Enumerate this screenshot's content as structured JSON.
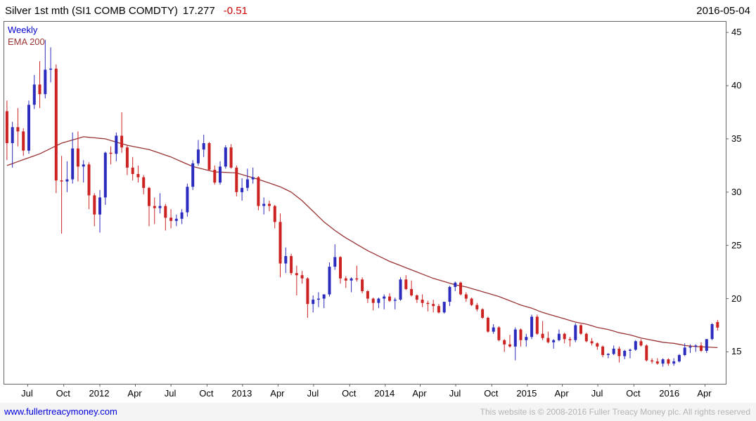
{
  "header": {
    "title": "Silver 1st mth (SI1 COMB COMDTY)",
    "price": "17.277",
    "change": "-0.51",
    "date": "2016-05-04"
  },
  "legend": {
    "timeframe": "Weekly",
    "overlay": "EMA 200"
  },
  "footer": {
    "link": "www.fullertreacymoney.com",
    "copyright": "This website is © 2008-2016 Fuller Treacy Money plc. All rights reserved"
  },
  "chart_data": {
    "type": "candlestick",
    "title": "Silver 1st mth (SI1 COMB COMDTY)",
    "timeframe": "Weekly",
    "overlay": "EMA 200",
    "last_price": 17.277,
    "change": -0.51,
    "date": "2016-05-04",
    "period_covered": "mid-2011 to May 2016, bi-weekly OHLC approximation",
    "ylim": [
      12,
      46
    ],
    "yticks": [
      15,
      20,
      25,
      30,
      35,
      40,
      45
    ],
    "grid": false,
    "legend_position": "top-left",
    "colors": {
      "up": "#2b2bbd",
      "down": "#cc2222",
      "ema": "#993333",
      "axis": "#666666"
    },
    "xticks": [
      {
        "label": "Jul",
        "i": 3.8
      },
      {
        "label": "Oct",
        "i": 10.4
      },
      {
        "label": "2012",
        "i": 17.0
      },
      {
        "label": "Apr",
        "i": 23.5
      },
      {
        "label": "Jul",
        "i": 30.0
      },
      {
        "label": "Oct",
        "i": 36.6
      },
      {
        "label": "2013",
        "i": 43.1
      },
      {
        "label": "Apr",
        "i": 49.6
      },
      {
        "label": "Jul",
        "i": 56.1
      },
      {
        "label": "Oct",
        "i": 62.7
      },
      {
        "label": "2014",
        "i": 69.2
      },
      {
        "label": "Apr",
        "i": 75.6
      },
      {
        "label": "Jul",
        "i": 82.1
      },
      {
        "label": "Oct",
        "i": 88.7
      },
      {
        "label": "2015",
        "i": 95.2
      },
      {
        "label": "Apr",
        "i": 101.6
      },
      {
        "label": "Jul",
        "i": 108.1
      },
      {
        "label": "Oct",
        "i": 114.7
      },
      {
        "label": "2016",
        "i": 121.3
      },
      {
        "label": "Apr",
        "i": 127.7
      }
    ],
    "candles": [
      [
        37.6,
        38.6,
        33.0,
        34.6
      ],
      [
        34.6,
        36.6,
        32.3,
        36.1
      ],
      [
        36.1,
        37.9,
        34.3,
        35.7
      ],
      [
        35.7,
        36.0,
        33.4,
        33.9
      ],
      [
        33.9,
        38.6,
        33.6,
        38.2
      ],
      [
        38.2,
        41.0,
        37.8,
        40.1
      ],
      [
        40.1,
        42.3,
        37.9,
        39.2
      ],
      [
        39.2,
        44.3,
        38.8,
        41.5
      ],
      [
        41.5,
        43.6,
        40.3,
        41.6
      ],
      [
        41.6,
        42.0,
        29.9,
        31.1
      ],
      [
        31.1,
        33.4,
        26.1,
        31.0
      ],
      [
        31.0,
        32.9,
        30.0,
        31.2
      ],
      [
        31.2,
        35.6,
        30.8,
        34.1
      ],
      [
        34.1,
        35.7,
        31.0,
        32.4
      ],
      [
        32.4,
        33.0,
        30.9,
        32.6
      ],
      [
        32.6,
        32.8,
        28.4,
        29.7
      ],
      [
        29.7,
        29.9,
        26.8,
        27.9
      ],
      [
        27.9,
        30.2,
        26.2,
        29.5
      ],
      [
        29.5,
        33.8,
        28.8,
        33.7
      ],
      [
        33.7,
        34.3,
        32.6,
        33.6
      ],
      [
        33.6,
        35.6,
        32.9,
        35.3
      ],
      [
        35.3,
        37.5,
        33.7,
        34.2
      ],
      [
        34.2,
        34.4,
        31.6,
        32.3
      ],
      [
        32.3,
        33.3,
        31.1,
        31.7
      ],
      [
        31.7,
        32.5,
        30.9,
        31.4
      ],
      [
        31.4,
        31.6,
        29.8,
        30.4
      ],
      [
        30.4,
        30.5,
        26.8,
        28.7
      ],
      [
        28.7,
        29.5,
        27.0,
        28.5
      ],
      [
        28.5,
        29.9,
        28.0,
        28.7
      ],
      [
        28.7,
        28.9,
        26.4,
        27.6
      ],
      [
        27.6,
        28.4,
        26.6,
        27.3
      ],
      [
        27.3,
        27.9,
        26.8,
        27.5
      ],
      [
        27.5,
        28.4,
        27.0,
        28.1
      ],
      [
        28.1,
        30.8,
        27.7,
        30.5
      ],
      [
        30.5,
        33.0,
        30.2,
        32.7
      ],
      [
        32.7,
        34.9,
        32.5,
        34.0
      ],
      [
        34.0,
        35.4,
        33.3,
        34.6
      ],
      [
        34.6,
        34.7,
        32.0,
        32.1
      ],
      [
        32.1,
        32.5,
        30.7,
        30.9
      ],
      [
        30.9,
        32.9,
        30.7,
        32.4
      ],
      [
        32.4,
        34.4,
        32.2,
        34.2
      ],
      [
        34.2,
        34.5,
        32.2,
        32.3
      ],
      [
        32.3,
        32.5,
        29.6,
        30.0
      ],
      [
        30.0,
        31.3,
        29.2,
        30.4
      ],
      [
        30.4,
        32.2,
        30.1,
        31.2
      ],
      [
        31.2,
        32.3,
        30.8,
        31.4
      ],
      [
        31.4,
        31.5,
        28.3,
        28.7
      ],
      [
        28.7,
        29.5,
        27.9,
        28.9
      ],
      [
        28.9,
        29.2,
        28.2,
        28.7
      ],
      [
        28.7,
        28.8,
        26.6,
        27.2
      ],
      [
        27.2,
        28.0,
        22.0,
        23.3
      ],
      [
        23.3,
        24.8,
        22.4,
        24.0
      ],
      [
        24.0,
        24.2,
        22.2,
        22.4
      ],
      [
        22.4,
        23.1,
        20.3,
        22.2
      ],
      [
        22.2,
        22.6,
        21.4,
        21.9
      ],
      [
        21.9,
        22.0,
        18.2,
        19.5
      ],
      [
        19.5,
        20.3,
        18.7,
        19.9
      ],
      [
        19.9,
        20.6,
        19.2,
        20.0
      ],
      [
        20.0,
        20.4,
        19.1,
        20.4
      ],
      [
        20.4,
        23.4,
        20.2,
        23.0
      ],
      [
        23.0,
        25.1,
        22.7,
        23.9
      ],
      [
        23.9,
        24.0,
        21.4,
        21.9
      ],
      [
        21.9,
        22.1,
        21.0,
        21.7
      ],
      [
        21.7,
        22.0,
        20.6,
        21.9
      ],
      [
        21.9,
        23.1,
        21.6,
        21.8
      ],
      [
        21.8,
        22.0,
        20.5,
        20.7
      ],
      [
        20.7,
        20.8,
        19.6,
        20.0
      ],
      [
        20.0,
        20.1,
        18.9,
        19.6
      ],
      [
        19.6,
        20.1,
        19.1,
        20.0
      ],
      [
        20.0,
        20.4,
        19.0,
        20.2
      ],
      [
        20.2,
        20.5,
        19.7,
        19.8
      ],
      [
        19.8,
        20.1,
        19.0,
        19.9
      ],
      [
        19.9,
        22.0,
        19.8,
        21.8
      ],
      [
        21.8,
        22.2,
        20.8,
        20.9
      ],
      [
        20.9,
        21.7,
        20.2,
        20.3
      ],
      [
        20.3,
        20.4,
        19.6,
        19.9
      ],
      [
        19.9,
        20.4,
        19.2,
        19.6
      ],
      [
        19.6,
        19.8,
        18.8,
        19.5
      ],
      [
        19.5,
        19.9,
        18.7,
        19.3
      ],
      [
        19.3,
        19.5,
        18.6,
        18.7
      ],
      [
        18.7,
        19.6,
        18.6,
        19.7
      ],
      [
        19.7,
        21.2,
        19.3,
        21.1
      ],
      [
        21.1,
        21.6,
        20.7,
        21.5
      ],
      [
        21.5,
        21.6,
        20.3,
        20.4
      ],
      [
        20.4,
        20.6,
        19.7,
        20.0
      ],
      [
        20.0,
        20.1,
        19.3,
        19.4
      ],
      [
        19.4,
        19.6,
        18.8,
        19.0
      ],
      [
        19.0,
        19.1,
        18.1,
        18.2
      ],
      [
        18.2,
        18.3,
        16.8,
        16.9
      ],
      [
        16.9,
        17.6,
        16.7,
        17.3
      ],
      [
        17.3,
        17.4,
        16.0,
        16.1
      ],
      [
        16.1,
        16.2,
        15.0,
        15.7
      ],
      [
        15.7,
        16.6,
        15.4,
        15.5
      ],
      [
        15.5,
        17.3,
        14.2,
        17.1
      ],
      [
        17.1,
        17.2,
        15.5,
        16.1
      ],
      [
        16.1,
        16.7,
        15.5,
        16.4
      ],
      [
        16.4,
        18.5,
        16.2,
        18.3
      ],
      [
        18.3,
        18.5,
        16.6,
        16.7
      ],
      [
        16.7,
        17.9,
        16.1,
        16.3
      ],
      [
        16.3,
        16.9,
        15.8,
        15.9
      ],
      [
        15.9,
        16.2,
        15.3,
        16.1
      ],
      [
        16.1,
        17.1,
        16.0,
        16.7
      ],
      [
        16.7,
        16.8,
        15.8,
        16.2
      ],
      [
        16.2,
        16.4,
        15.5,
        16.1
      ],
      [
        16.1,
        17.7,
        15.9,
        17.5
      ],
      [
        17.5,
        17.6,
        16.6,
        16.7
      ],
      [
        16.7,
        16.8,
        15.9,
        16.0
      ],
      [
        16.0,
        16.3,
        15.6,
        15.8
      ],
      [
        15.8,
        15.9,
        15.2,
        15.5
      ],
      [
        15.5,
        15.6,
        14.5,
        14.7
      ],
      [
        14.7,
        14.9,
        14.4,
        14.8
      ],
      [
        14.8,
        15.6,
        14.7,
        15.3
      ],
      [
        15.3,
        15.5,
        14.0,
        14.6
      ],
      [
        14.6,
        15.2,
        14.3,
        15.1
      ],
      [
        15.1,
        15.3,
        14.4,
        15.2
      ],
      [
        15.2,
        16.1,
        15.1,
        16.0
      ],
      [
        16.0,
        16.2,
        15.5,
        15.6
      ],
      [
        15.6,
        15.7,
        14.1,
        14.2
      ],
      [
        14.2,
        14.4,
        13.9,
        14.1
      ],
      [
        14.1,
        14.4,
        13.8,
        13.9
      ],
      [
        13.9,
        14.4,
        13.6,
        14.3
      ],
      [
        14.3,
        14.4,
        13.7,
        13.9
      ],
      [
        13.9,
        14.4,
        13.7,
        14.1
      ],
      [
        14.1,
        14.8,
        14.0,
        14.7
      ],
      [
        14.7,
        15.8,
        14.6,
        15.4
      ],
      [
        15.4,
        15.7,
        14.9,
        15.5
      ],
      [
        15.5,
        15.7,
        15.0,
        15.6
      ],
      [
        15.6,
        15.9,
        15.0,
        15.1
      ],
      [
        15.1,
        16.2,
        14.9,
        16.2
      ],
      [
        16.2,
        17.7,
        16.1,
        17.6
      ],
      [
        17.8,
        18.0,
        17.0,
        17.277
      ]
    ],
    "ema200_anchors": [
      [
        0,
        32.5
      ],
      [
        6,
        33.6
      ],
      [
        10,
        34.6
      ],
      [
        14,
        35.2
      ],
      [
        18,
        35.0
      ],
      [
        22,
        34.4
      ],
      [
        26,
        34.0
      ],
      [
        30,
        33.3
      ],
      [
        34,
        32.4
      ],
      [
        38,
        31.9
      ],
      [
        42,
        31.8
      ],
      [
        46,
        31.2
      ],
      [
        50,
        30.5
      ],
      [
        52,
        30.0
      ],
      [
        54,
        29.2
      ],
      [
        56,
        28.2
      ],
      [
        58,
        27.2
      ],
      [
        60,
        26.4
      ],
      [
        62,
        25.7
      ],
      [
        64,
        25.1
      ],
      [
        66,
        24.5
      ],
      [
        68,
        24.0
      ],
      [
        70,
        23.5
      ],
      [
        72,
        23.1
      ],
      [
        74,
        22.7
      ],
      [
        76,
        22.3
      ],
      [
        78,
        21.9
      ],
      [
        80,
        21.6
      ],
      [
        82,
        21.3
      ],
      [
        84,
        21.1
      ],
      [
        86,
        20.8
      ],
      [
        88,
        20.5
      ],
      [
        90,
        20.2
      ],
      [
        92,
        19.8
      ],
      [
        94,
        19.4
      ],
      [
        96,
        19.1
      ],
      [
        98,
        18.7
      ],
      [
        100,
        18.4
      ],
      [
        102,
        18.1
      ],
      [
        104,
        17.8
      ],
      [
        106,
        17.6
      ],
      [
        108,
        17.3
      ],
      [
        110,
        17.1
      ],
      [
        112,
        16.8
      ],
      [
        114,
        16.6
      ],
      [
        116,
        16.3
      ],
      [
        118,
        16.1
      ],
      [
        120,
        15.9
      ],
      [
        122,
        15.8
      ],
      [
        124,
        15.6
      ],
      [
        126,
        15.5
      ],
      [
        128,
        15.45
      ],
      [
        130,
        15.4
      ]
    ]
  }
}
